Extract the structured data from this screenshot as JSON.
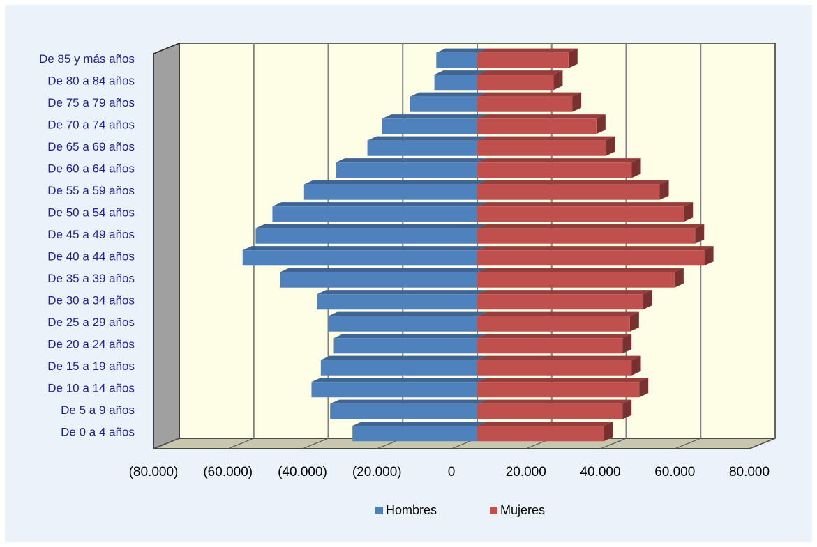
{
  "chart_data": {
    "type": "bar",
    "orientation": "horizontal",
    "style": "population-pyramid-3d",
    "categories": [
      "De 85 y más años",
      "De 80 a 84 años",
      "De 75 a 79 años",
      "De 70 a 74 años",
      "De 65 a 69 años",
      "De 60 a 64 años",
      "De 55 a 59 años",
      "De 50 a 54 años",
      "De 45 a 49 años",
      "De 40 a 44 años",
      "De 35 a 39 años",
      "De 30 a 34 años",
      "De 25 a 29 años",
      "De 20 a 24 años",
      "De 15 a 19 años",
      "De 10 a 14 años",
      "De 5 a 9 años",
      "De 0 a 4 años"
    ],
    "series": [
      {
        "name": "Hombres",
        "color": "#4f81bd",
        "values": [
          -11000,
          -11500,
          -18000,
          -25500,
          -29500,
          -38000,
          -46500,
          -55000,
          -59500,
          -63000,
          -53000,
          -43000,
          -40000,
          -38500,
          -42000,
          -44500,
          -39500,
          -33500
        ]
      },
      {
        "name": "Mujeres",
        "color": "#c0504d",
        "values": [
          24500,
          20500,
          25500,
          32000,
          34500,
          41500,
          49000,
          55500,
          58500,
          61000,
          53000,
          44500,
          41000,
          39000,
          41500,
          43500,
          39000,
          34000
        ]
      }
    ],
    "x_ticks": [
      "(80.000)",
      "(60.000)",
      "(40.000)",
      "(20.000)",
      "0",
      "20.000",
      "40.000",
      "60.000",
      "80.000"
    ],
    "xlim": [
      -80000,
      80000
    ],
    "grid": true,
    "plot_background": "#fefee6",
    "legend_position": "bottom"
  }
}
